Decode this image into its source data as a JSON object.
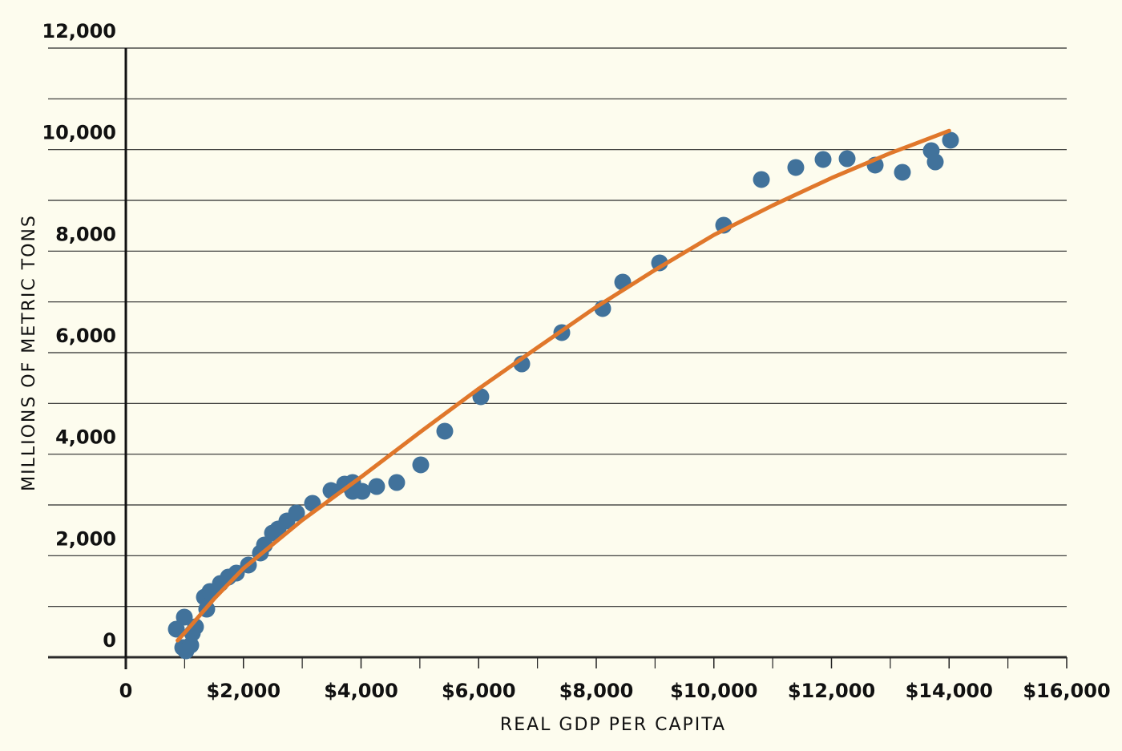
{
  "chart_data": {
    "type": "scatter",
    "x_label": "REAL GDP PER CAPITA",
    "y_label": "MILLIONS OF METRIC TONS",
    "color": "#41729b",
    "x": [
      859,
      995,
      968,
      1022,
      1104,
      1131,
      1185,
      1336,
      1376,
      1431,
      1608,
      1744,
      1880,
      2085,
      2289,
      2358,
      2494,
      2589,
      2739,
      2903,
      3175,
      3489,
      3721,
      3857,
      3857,
      4020,
      4265,
      4606,
      5015,
      5424,
      6037,
      6733,
      7414,
      8109,
      8450,
      9077,
      10167,
      10808,
      11393,
      11857,
      12266,
      12743,
      13206,
      13697,
      13765,
      14024
    ],
    "values": [
      553,
      790,
      190,
      126,
      237,
      474,
      600,
      1184,
      947,
      1295,
      1453,
      1579,
      1658,
      1816,
      2053,
      2211,
      2447,
      2526,
      2684,
      2842,
      3032,
      3284,
      3411,
      3442,
      3268,
      3268,
      3363,
      3442,
      3790,
      4453,
      5132,
      5779,
      6395,
      6869,
      7390,
      7769,
      8511,
      9411,
      9648,
      9806,
      9821,
      9695,
      9553,
      9979,
      9758,
      10185
    ],
    "trend": {
      "type": "line",
      "color": "#e0772b",
      "x": [
        880,
        1000,
        1500,
        2000,
        3000,
        4000,
        5000,
        6000,
        7000,
        8000,
        9000,
        10000,
        11000,
        12000,
        13000,
        14000
      ],
      "values": [
        330,
        480,
        1150,
        1750,
        2700,
        3550,
        4430,
        5290,
        6100,
        6900,
        7630,
        8320,
        8900,
        9440,
        9930,
        10370
      ]
    },
    "xlim": [
      0,
      16000
    ],
    "ylim": [
      0,
      12000
    ],
    "xticks": [
      0,
      {
        "value": 2000,
        "label": "$2,000"
      },
      {
        "value": 4000,
        "label": "$4,000"
      },
      {
        "value": 6000,
        "label": "$6,000"
      },
      {
        "value": 8000,
        "label": "$8,000"
      },
      {
        "value": 10000,
        "label": "$10,000"
      },
      {
        "value": 12000,
        "label": "$12,000"
      },
      {
        "value": 14000,
        "label": "$14,000"
      },
      {
        "value": 16000,
        "label": "$16,000"
      }
    ],
    "x_minor_ticks": [
      1000,
      3000,
      5000,
      7000,
      9000,
      11000,
      13000,
      15000
    ],
    "yticks": [
      0,
      {
        "value": 2000,
        "label": "2,000"
      },
      {
        "value": 4000,
        "label": "4,000"
      },
      {
        "value": 6000,
        "label": "6,000"
      },
      {
        "value": 8000,
        "label": "8,000"
      },
      {
        "value": 10000,
        "label": "10,000"
      },
      {
        "value": 12000,
        "label": "12,000"
      }
    ],
    "y_minor_ticks": [
      1000,
      3000,
      5000,
      7000,
      9000,
      11000
    ],
    "grid": true
  }
}
